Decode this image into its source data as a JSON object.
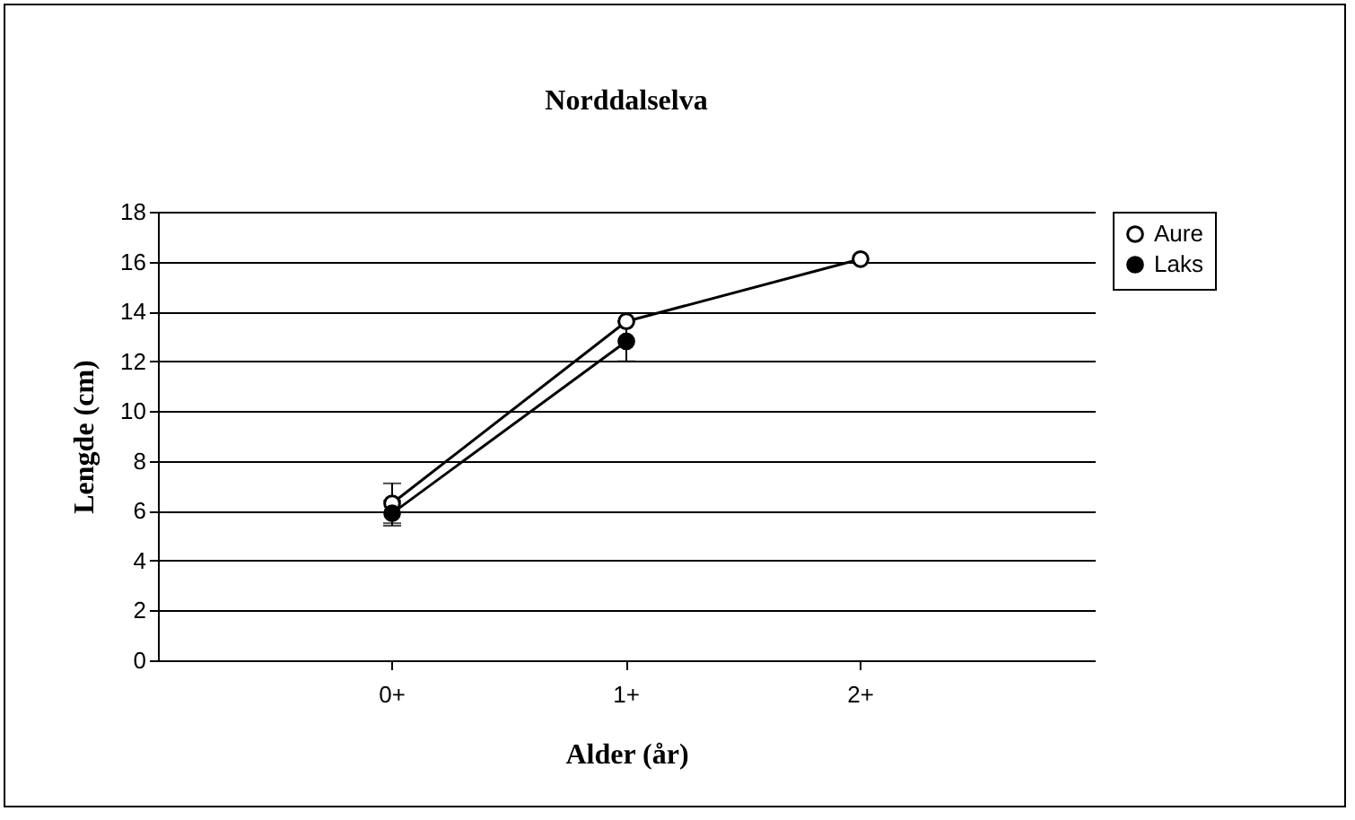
{
  "chart_data": {
    "type": "line",
    "title": "Norddalselva",
    "xlabel": "Alder (år)",
    "ylabel": "Lengde (cm)",
    "categories": [
      "0+",
      "1+",
      "2+"
    ],
    "series": [
      {
        "name": "Aure",
        "color": "#000000",
        "values": [
          6.3,
          13.6,
          16.1
        ],
        "errors": [
          0.8,
          null,
          null
        ]
      },
      {
        "name": "Laks",
        "color": "#000000",
        "values": [
          5.9,
          12.8,
          null
        ],
        "errors": [
          0.5,
          0.8,
          null
        ]
      }
    ],
    "ylim": [
      0,
      18
    ],
    "yticks": [
      0,
      2,
      4,
      6,
      8,
      10,
      12,
      14,
      16,
      18
    ],
    "grid": "y",
    "legend": "right",
    "marker": "circle",
    "line_style": "solid"
  }
}
